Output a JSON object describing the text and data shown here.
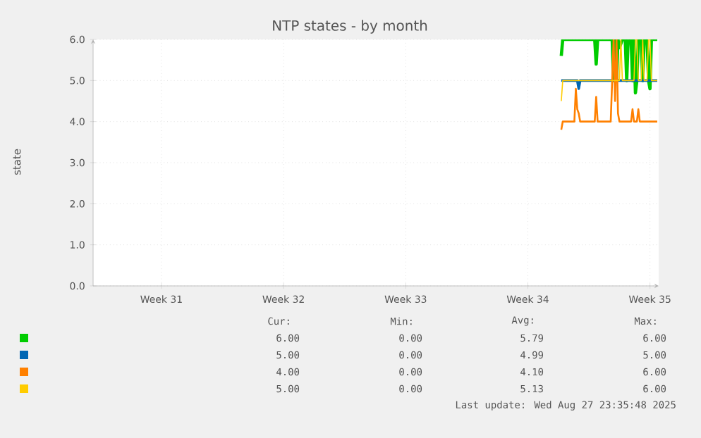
{
  "chart_data": {
    "type": "line",
    "title": "NTP states - by month",
    "ylabel": "state",
    "xlim": [
      "2025-07-26T14:00",
      "2025-08-28T00:00"
    ],
    "xticks": [
      {
        "value": "2025-07-30T12:00",
        "label": "Week 31"
      },
      {
        "value": "2025-08-06T12:00",
        "label": "Week 32"
      },
      {
        "value": "2025-08-13T12:00",
        "label": "Week 33"
      },
      {
        "value": "2025-08-20T12:00",
        "label": "Week 34"
      },
      {
        "value": "2025-08-27T12:00",
        "label": "Week 35"
      }
    ],
    "ylim": [
      0,
      6
    ],
    "yticks": [
      {
        "value": 0,
        "label": "0.0"
      },
      {
        "value": 1,
        "label": "1.0"
      },
      {
        "value": 2,
        "label": "2.0"
      },
      {
        "value": 3,
        "label": "3.0"
      },
      {
        "value": 4,
        "label": "4.0"
      },
      {
        "value": 5,
        "label": "5.0"
      },
      {
        "value": 6,
        "label": "6.0"
      }
    ],
    "grid": true,
    "line_style": "solid",
    "series": [
      {
        "color": "#00cc00",
        "x": [
          "2025-08-22T10:00",
          "2025-08-22T12:00",
          "2025-08-24T08:00",
          "2025-08-24T10:00",
          "2025-08-24T12:00",
          "2025-08-25T08:00",
          "2025-08-25T10:00",
          "2025-08-25T12:00",
          "2025-08-25T14:00",
          "2025-08-25T16:00",
          "2025-08-25T18:00",
          "2025-08-25T22:00",
          "2025-08-26T02:00",
          "2025-08-26T04:00",
          "2025-08-26T06:00",
          "2025-08-26T10:00",
          "2025-08-26T12:00",
          "2025-08-26T14:00",
          "2025-08-26T16:00",
          "2025-08-26T18:00",
          "2025-08-26T20:00",
          "2025-08-27T00:00",
          "2025-08-27T02:00",
          "2025-08-27T04:00",
          "2025-08-27T08:00",
          "2025-08-27T10:00",
          "2025-08-27T12:00",
          "2025-08-27T14:00",
          "2025-08-27T22:00"
        ],
        "values": [
          5.6,
          6,
          6,
          5.4,
          6,
          6,
          5.0,
          6,
          5.0,
          6,
          5.8,
          6,
          6,
          5.0,
          6,
          6,
          5.0,
          6,
          4.7,
          5.0,
          6,
          6,
          5.0,
          6,
          6,
          5.0,
          4.8,
          6,
          6
        ]
      },
      {
        "color": "#0066b3",
        "x": [
          "2025-08-22T10:00",
          "2025-08-23T08:00",
          "2025-08-23T10:00",
          "2025-08-23T12:00",
          "2025-08-27T22:00"
        ],
        "values": [
          5,
          5,
          4.8,
          5,
          5
        ]
      },
      {
        "color": "#ff8000",
        "x": [
          "2025-08-22T10:00",
          "2025-08-22T12:00",
          "2025-08-23T04:00",
          "2025-08-23T06:00",
          "2025-08-23T08:00",
          "2025-08-23T10:00",
          "2025-08-23T12:00",
          "2025-08-24T08:00",
          "2025-08-24T10:00",
          "2025-08-24T12:00",
          "2025-08-25T06:00",
          "2025-08-25T08:00",
          "2025-08-25T10:00",
          "2025-08-25T12:00",
          "2025-08-25T14:00",
          "2025-08-25T16:00",
          "2025-08-25T18:00",
          "2025-08-26T10:00",
          "2025-08-26T12:00",
          "2025-08-26T14:00",
          "2025-08-26T18:00",
          "2025-08-26T20:00",
          "2025-08-26T22:00",
          "2025-08-27T22:00"
        ],
        "values": [
          3.8,
          4,
          4,
          4.8,
          4.3,
          4.2,
          4,
          4,
          4.6,
          4,
          4,
          5.0,
          6,
          4.5,
          6,
          4.2,
          4,
          4,
          4.3,
          4,
          4,
          4.3,
          4,
          4
        ]
      },
      {
        "color": "#ffcc00",
        "x": [
          "2025-08-22T10:00",
          "2025-08-22T12:00",
          "2025-08-25T18:00",
          "2025-08-25T20:00",
          "2025-08-25T22:00",
          "2025-08-26T14:00",
          "2025-08-26T16:00",
          "2025-08-26T18:00",
          "2025-08-26T20:00",
          "2025-08-27T00:00",
          "2025-08-27T02:00",
          "2025-08-27T04:00",
          "2025-08-27T08:00",
          "2025-08-27T10:00",
          "2025-08-27T12:00",
          "2025-08-27T14:00",
          "2025-08-27T22:00"
        ],
        "values": [
          4.5,
          5,
          5,
          6,
          5,
          5,
          6,
          6,
          5,
          5,
          6,
          5,
          5,
          6,
          6,
          5,
          5
        ]
      }
    ],
    "annotations": [
      "Cur:",
      "Min:",
      "Avg:",
      "Max:",
      "6.00",
      "0.00",
      "5.79",
      "6.00",
      "5.00",
      "0.00",
      "4.99",
      "5.00",
      "4.00",
      "0.00",
      "4.10",
      "6.00",
      "5.00",
      "0.00",
      "5.13",
      "6.00",
      "Last update: Wed Aug 27 23:35:48 2025"
    ]
  }
}
